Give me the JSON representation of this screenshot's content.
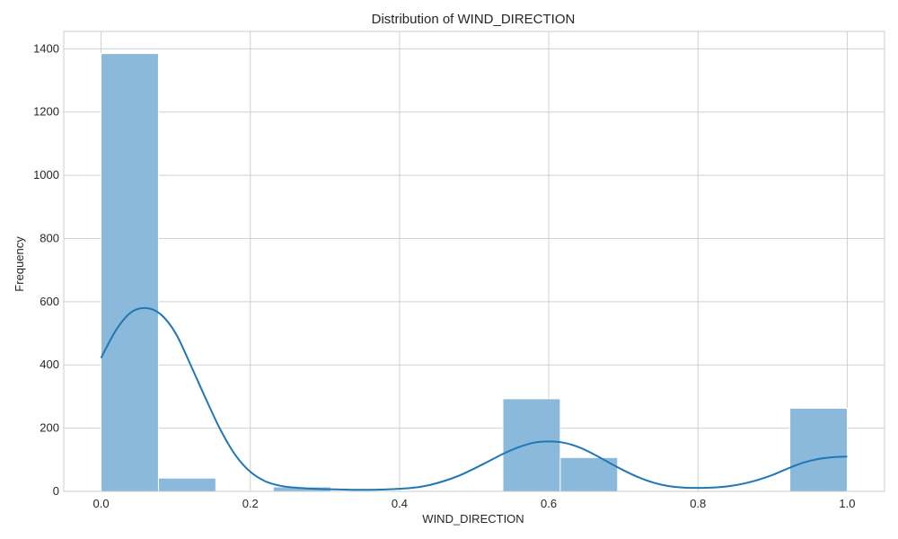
{
  "chart_data": {
    "type": "bar",
    "title": "Distribution of WIND_DIRECTION",
    "xlabel": "WIND_DIRECTION",
    "ylabel": "Frequency",
    "xlim": [
      -0.05,
      1.05
    ],
    "ylim": [
      0,
      1455
    ],
    "xticks": [
      0.0,
      0.2,
      0.4,
      0.6,
      0.8,
      1.0
    ],
    "xtick_labels": [
      "0.0",
      "0.2",
      "0.4",
      "0.6",
      "0.8",
      "1.0"
    ],
    "yticks": [
      0,
      200,
      400,
      600,
      800,
      1000,
      1200,
      1400
    ],
    "ytick_labels": [
      "0",
      "200",
      "400",
      "600",
      "800",
      "1000",
      "1200",
      "1400"
    ],
    "grid": true,
    "bins": [
      {
        "x0": 0.0,
        "x1": 0.0769,
        "count": 1385
      },
      {
        "x0": 0.0769,
        "x1": 0.1538,
        "count": 42
      },
      {
        "x0": 0.1538,
        "x1": 0.2308,
        "count": 0
      },
      {
        "x0": 0.2308,
        "x1": 0.3077,
        "count": 14
      },
      {
        "x0": 0.3077,
        "x1": 0.3846,
        "count": 0
      },
      {
        "x0": 0.3846,
        "x1": 0.4615,
        "count": 0
      },
      {
        "x0": 0.4615,
        "x1": 0.5385,
        "count": 0
      },
      {
        "x0": 0.5385,
        "x1": 0.6154,
        "count": 293
      },
      {
        "x0": 0.6154,
        "x1": 0.6923,
        "count": 107
      },
      {
        "x0": 0.6923,
        "x1": 0.7692,
        "count": 0
      },
      {
        "x0": 0.7692,
        "x1": 0.8462,
        "count": 0
      },
      {
        "x0": 0.8462,
        "x1": 0.9231,
        "count": 0
      },
      {
        "x0": 0.9231,
        "x1": 1.0,
        "count": 263
      }
    ],
    "kde": {
      "x": [
        0.0,
        0.02,
        0.04,
        0.06,
        0.08,
        0.1,
        0.12,
        0.14,
        0.16,
        0.18,
        0.2,
        0.22,
        0.24,
        0.26,
        0.28,
        0.3,
        0.32,
        0.34,
        0.36,
        0.38,
        0.4,
        0.42,
        0.44,
        0.46,
        0.48,
        0.5,
        0.52,
        0.54,
        0.56,
        0.58,
        0.6,
        0.62,
        0.64,
        0.66,
        0.68,
        0.7,
        0.72,
        0.74,
        0.76,
        0.78,
        0.8,
        0.82,
        0.84,
        0.86,
        0.88,
        0.9,
        0.92,
        0.94,
        0.96,
        0.98,
        1.0
      ],
      "y": [
        422,
        510,
        566,
        580,
        560,
        500,
        400,
        295,
        195,
        115,
        62,
        32,
        18,
        12,
        9,
        7,
        6,
        5,
        5,
        6,
        8,
        12,
        20,
        33,
        50,
        72,
        96,
        120,
        140,
        154,
        158,
        154,
        140,
        118,
        92,
        67,
        45,
        28,
        17,
        12,
        11,
        12,
        16,
        24,
        36,
        52,
        72,
        90,
        102,
        108,
        110
      ]
    },
    "colors": {
      "bar_fill": "#8bb9db",
      "bar_edge": "#ffffff",
      "kde_line": "#1f77b4",
      "grid": "#d0d0d0",
      "frame": "#cccccc",
      "text": "#262626"
    }
  }
}
